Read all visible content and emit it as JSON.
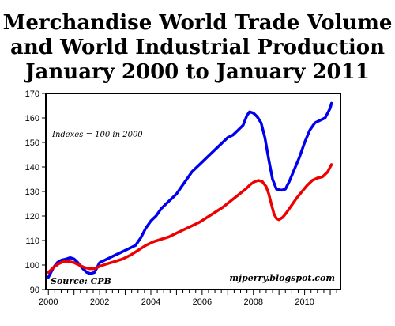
{
  "chart_data": {
    "type": "line",
    "title_lines": [
      "Merchandise World Trade Volume",
      "and World Industrial Production",
      "January 2000 to January 2011"
    ],
    "annotation": "Indexes = 100 in 2000",
    "source": "Source: CPB",
    "credit": "mjperry.blogspot.com",
    "ylim": [
      90,
      170
    ],
    "yticks": [
      90,
      100,
      110,
      120,
      130,
      140,
      150,
      160,
      170
    ],
    "xlim": [
      1999.9,
      2011.4
    ],
    "xticks": [
      2000,
      2002,
      2004,
      2006,
      2008,
      2010
    ],
    "series": [
      {
        "color": "#0000ee",
        "points": [
          [
            2000.0,
            95
          ],
          [
            2000.1,
            97
          ],
          [
            2000.2,
            99
          ],
          [
            2000.35,
            101
          ],
          [
            2000.5,
            102
          ],
          [
            2000.7,
            102.5
          ],
          [
            2000.85,
            103
          ],
          [
            2001.0,
            102.5
          ],
          [
            2001.15,
            101
          ],
          [
            2001.3,
            99
          ],
          [
            2001.5,
            97
          ],
          [
            2001.65,
            96.5
          ],
          [
            2001.8,
            97
          ],
          [
            2001.9,
            99
          ],
          [
            2002.0,
            101
          ],
          [
            2002.2,
            102
          ],
          [
            2002.4,
            103
          ],
          [
            2002.6,
            104
          ],
          [
            2002.8,
            105
          ],
          [
            2003.0,
            106
          ],
          [
            2003.2,
            107
          ],
          [
            2003.4,
            108
          ],
          [
            2003.6,
            111
          ],
          [
            2003.8,
            115
          ],
          [
            2004.0,
            118
          ],
          [
            2004.2,
            120
          ],
          [
            2004.4,
            123
          ],
          [
            2004.6,
            125
          ],
          [
            2004.8,
            127
          ],
          [
            2005.0,
            129
          ],
          [
            2005.2,
            132
          ],
          [
            2005.4,
            135
          ],
          [
            2005.6,
            138
          ],
          [
            2005.8,
            140
          ],
          [
            2006.0,
            142
          ],
          [
            2006.2,
            144
          ],
          [
            2006.4,
            146
          ],
          [
            2006.6,
            148
          ],
          [
            2006.8,
            150
          ],
          [
            2007.0,
            152
          ],
          [
            2007.2,
            153
          ],
          [
            2007.4,
            155
          ],
          [
            2007.6,
            157
          ],
          [
            2007.75,
            161
          ],
          [
            2007.85,
            162.5
          ],
          [
            2008.0,
            162
          ],
          [
            2008.15,
            160.5
          ],
          [
            2008.3,
            158
          ],
          [
            2008.45,
            152
          ],
          [
            2008.6,
            143
          ],
          [
            2008.75,
            135
          ],
          [
            2008.9,
            131
          ],
          [
            2009.1,
            130.5
          ],
          [
            2009.25,
            131
          ],
          [
            2009.4,
            134
          ],
          [
            2009.6,
            139
          ],
          [
            2009.8,
            144
          ],
          [
            2010.0,
            150
          ],
          [
            2010.2,
            155
          ],
          [
            2010.4,
            158
          ],
          [
            2010.6,
            159
          ],
          [
            2010.8,
            160
          ],
          [
            2010.9,
            162
          ],
          [
            2011.0,
            164
          ],
          [
            2011.05,
            166
          ]
        ]
      },
      {
        "color": "#ee0000",
        "points": [
          [
            2000.0,
            97
          ],
          [
            2000.2,
            99
          ],
          [
            2000.4,
            100.5
          ],
          [
            2000.6,
            101.5
          ],
          [
            2000.8,
            101.5
          ],
          [
            2001.0,
            101
          ],
          [
            2001.2,
            100
          ],
          [
            2001.4,
            99
          ],
          [
            2001.6,
            98.5
          ],
          [
            2001.8,
            98.5
          ],
          [
            2002.0,
            99.5
          ],
          [
            2002.3,
            100.5
          ],
          [
            2002.6,
            101.5
          ],
          [
            2002.9,
            102.5
          ],
          [
            2003.2,
            104
          ],
          [
            2003.5,
            106
          ],
          [
            2003.8,
            108
          ],
          [
            2004.1,
            109.5
          ],
          [
            2004.4,
            110.5
          ],
          [
            2004.7,
            111.5
          ],
          [
            2005.0,
            113
          ],
          [
            2005.3,
            114.5
          ],
          [
            2005.6,
            116
          ],
          [
            2005.9,
            117.5
          ],
          [
            2006.2,
            119.5
          ],
          [
            2006.5,
            121.5
          ],
          [
            2006.8,
            123.5
          ],
          [
            2007.1,
            126
          ],
          [
            2007.4,
            128.5
          ],
          [
            2007.7,
            131
          ],
          [
            2007.9,
            133
          ],
          [
            2008.05,
            134
          ],
          [
            2008.2,
            134.5
          ],
          [
            2008.35,
            134
          ],
          [
            2008.5,
            132
          ],
          [
            2008.6,
            129
          ],
          [
            2008.7,
            125
          ],
          [
            2008.8,
            121
          ],
          [
            2008.9,
            119
          ],
          [
            2009.0,
            118.5
          ],
          [
            2009.15,
            119.5
          ],
          [
            2009.3,
            121.5
          ],
          [
            2009.5,
            124.5
          ],
          [
            2009.7,
            127.5
          ],
          [
            2009.9,
            130
          ],
          [
            2010.1,
            132.5
          ],
          [
            2010.3,
            134.5
          ],
          [
            2010.5,
            135.5
          ],
          [
            2010.7,
            136
          ],
          [
            2010.9,
            138
          ],
          [
            2011.0,
            140
          ],
          [
            2011.05,
            141
          ]
        ]
      }
    ]
  }
}
